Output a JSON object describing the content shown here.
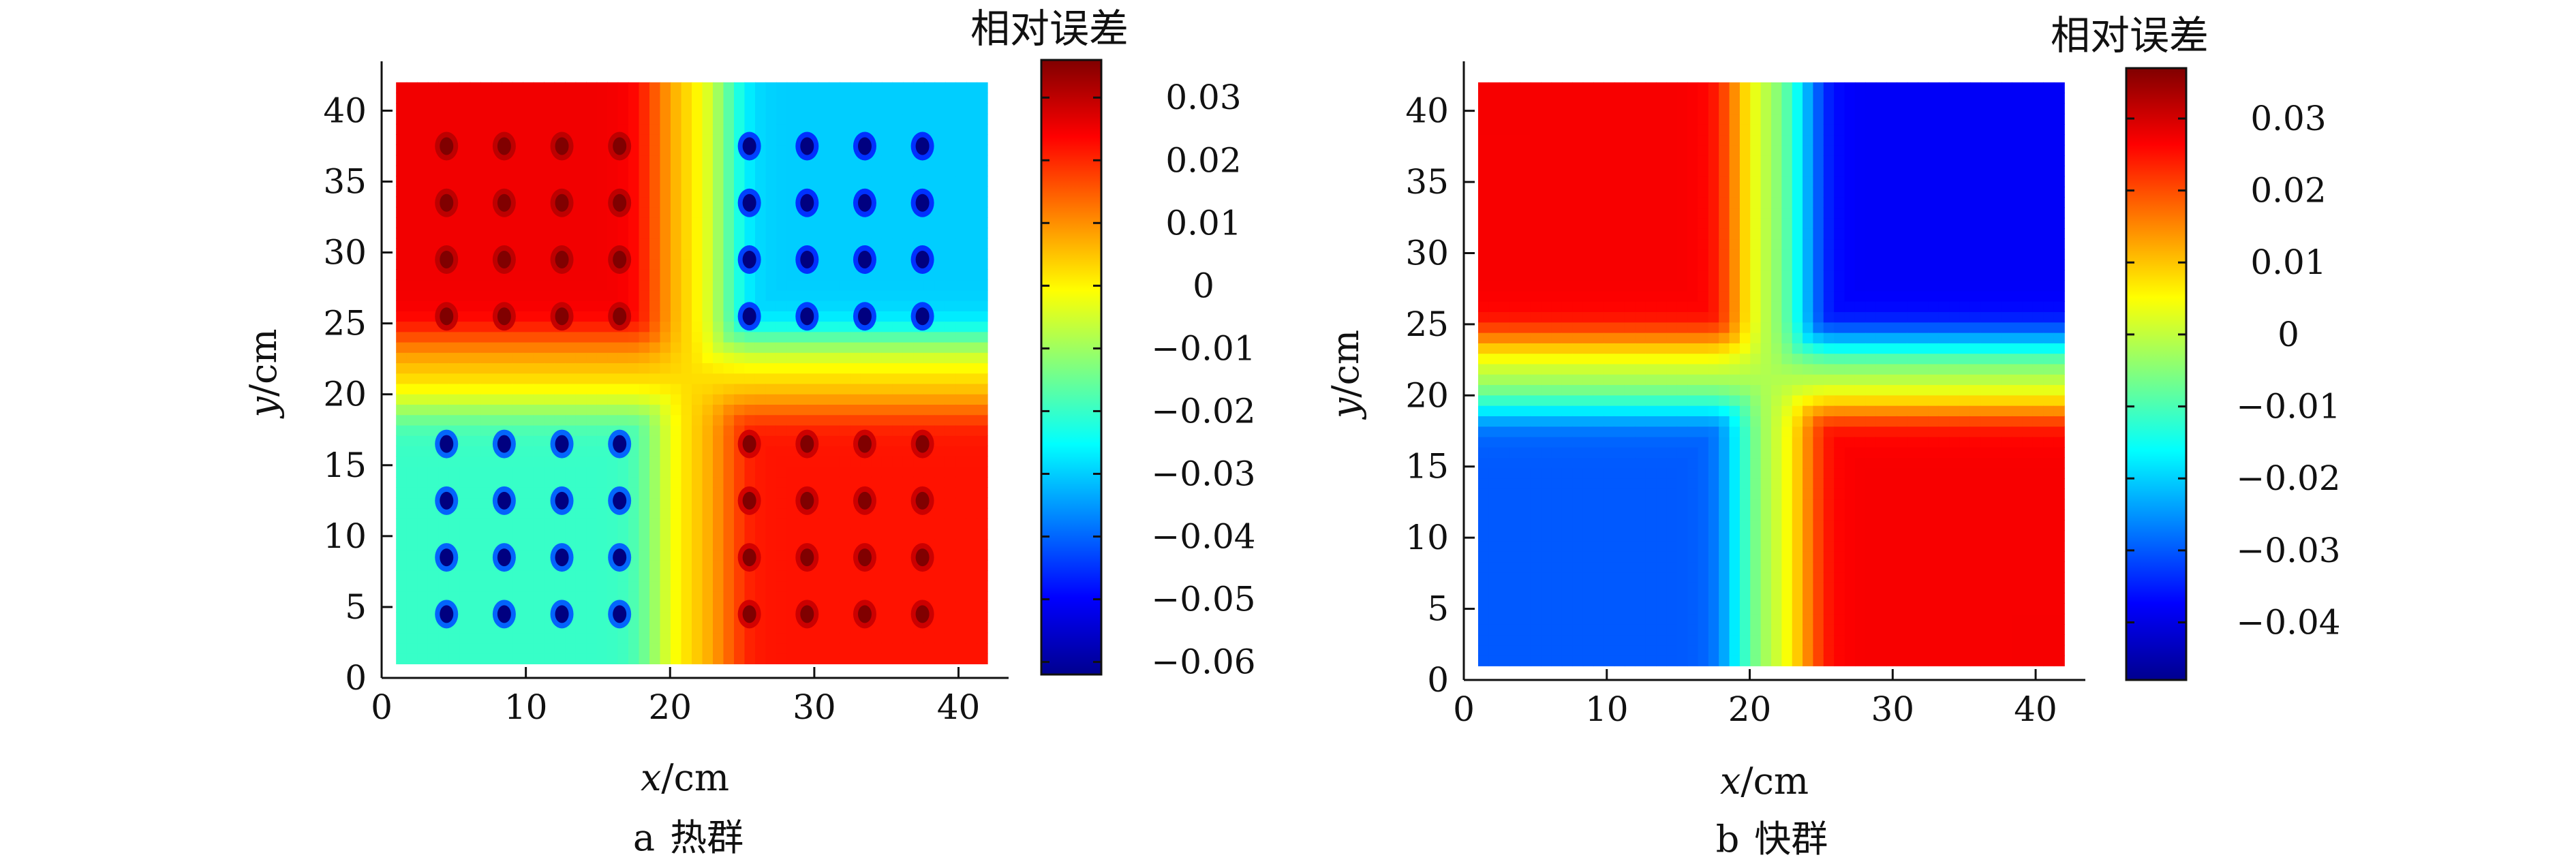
{
  "chart_data": [
    {
      "type": "heatmap",
      "panel": "a",
      "caption_letter": "a",
      "caption_text": "热群",
      "colorbar_title": "相对误差",
      "xlabel_var": "x",
      "xlabel_unit": "/cm",
      "ylabel_var": "y",
      "ylabel_unit": "/cm",
      "xlim": [
        0,
        43
      ],
      "ylim": [
        0,
        43
      ],
      "x_ticks": [
        0,
        10,
        20,
        30,
        40
      ],
      "y_ticks": [
        0,
        5,
        10,
        15,
        20,
        25,
        30,
        35,
        40
      ],
      "x_tick_labels": [
        "0",
        "10",
        "20",
        "30",
        "40"
      ],
      "y_tick_labels": [
        "0",
        "5",
        "10",
        "15",
        "20",
        "25",
        "30",
        "35",
        "40"
      ],
      "data_extent": [
        1,
        42
      ],
      "colorbar_range": [
        -0.062,
        0.036
      ],
      "colorbar_ticks": [
        0.03,
        0.02,
        0.01,
        0,
        -0.01,
        -0.02,
        -0.03,
        -0.04,
        -0.05,
        -0.06
      ],
      "colorbar_tick_labels": [
        "0.03",
        "0.02",
        "0.01",
        "0",
        "−0.01",
        "−0.02",
        "−0.03",
        "−0.04",
        "−0.05",
        "−0.06"
      ],
      "quadrant_values": {
        "top_left": 0.025,
        "top_right": -0.03,
        "bottom_left": -0.02,
        "bottom_right": 0.022,
        "center_band": 0.005
      },
      "pattern": "checkerboard of quadrants with rod-position spots"
    },
    {
      "type": "heatmap",
      "panel": "b",
      "caption_letter": "b",
      "caption_text": "快群",
      "colorbar_title": "相对误差",
      "xlabel_var": "x",
      "xlabel_unit": "/cm",
      "ylabel_var": "y",
      "ylabel_unit": "/cm",
      "xlim": [
        0,
        43
      ],
      "ylim": [
        0,
        43
      ],
      "x_ticks": [
        0,
        10,
        20,
        30,
        40
      ],
      "y_ticks": [
        0,
        5,
        10,
        15,
        20,
        25,
        30,
        35,
        40
      ],
      "x_tick_labels": [
        "0",
        "10",
        "20",
        "30",
        "40"
      ],
      "y_tick_labels": [
        "0",
        "5",
        "10",
        "15",
        "20",
        "25",
        "30",
        "35",
        "40"
      ],
      "data_extent": [
        1,
        42
      ],
      "colorbar_range": [
        -0.048,
        0.037
      ],
      "colorbar_ticks": [
        0.03,
        0.02,
        0.01,
        0,
        -0.01,
        -0.02,
        -0.03,
        -0.04
      ],
      "colorbar_tick_labels": [
        "0.03",
        "0.02",
        "0.01",
        "0",
        "−0.01",
        "−0.02",
        "−0.03",
        "−0.04"
      ],
      "quadrant_values": {
        "top_left": 0.027,
        "top_right": -0.038,
        "bottom_left": -0.03,
        "bottom_right": 0.027,
        "center_band": 0.0
      },
      "pattern": "smooth saddle-shaped quadrant distribution"
    }
  ]
}
